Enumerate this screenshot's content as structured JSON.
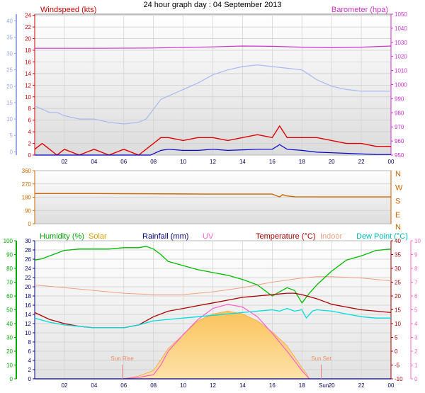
{
  "header": {
    "title": "24 hour graph day : 04 September 2013"
  },
  "chart_data": [
    {
      "type": "line",
      "labels": {
        "wind": "Windspeed (kts)",
        "baro": "Barometer (hpa)"
      },
      "x_ticks": [
        "02",
        "04",
        "06",
        "08",
        "10",
        "12",
        "14",
        "16",
        "18",
        "20",
        "22",
        "00"
      ],
      "xlim": [
        0,
        24
      ],
      "axes": {
        "outer_left": {
          "ticks": [
            0,
            5,
            10,
            15,
            20,
            25,
            30,
            35,
            40
          ],
          "ylim": [
            -1,
            42
          ]
        },
        "wind": {
          "ticks": [
            0,
            2,
            4,
            6,
            8,
            10,
            12,
            14,
            16,
            18,
            20,
            22,
            24
          ],
          "ylim": [
            0,
            24.2
          ]
        },
        "baro": {
          "ticks": [
            950,
            960,
            970,
            980,
            990,
            1000,
            1010,
            1020,
            1030,
            1040,
            1050
          ],
          "ylim": [
            950,
            1050
          ]
        }
      },
      "series": [
        {
          "key": "barometer",
          "axis": "baro",
          "color": "#cc33cc",
          "x": [
            0,
            4,
            8,
            12,
            14,
            16,
            18,
            20,
            22,
            24
          ],
          "values": [
            1025.8,
            1025.8,
            1026,
            1026.8,
            1027.4,
            1027.2,
            1026.6,
            1026.2,
            1026.6,
            1027.4
          ]
        },
        {
          "key": "wind_direction_trace",
          "axis": "outer_left",
          "color": "#a8b8f0",
          "x": [
            0,
            0.5,
            1,
            1.5,
            2,
            3,
            4,
            5,
            6,
            7,
            7.5,
            8,
            8.5,
            9,
            10,
            11,
            12,
            13,
            14,
            15,
            16,
            17,
            18,
            18.5,
            19,
            20,
            21,
            22,
            23,
            24
          ],
          "values": [
            14,
            13,
            12,
            12,
            11,
            10,
            10,
            9,
            8.5,
            9,
            10,
            13,
            16,
            17,
            19,
            21,
            23.5,
            25,
            26,
            26.5,
            26,
            25.5,
            25,
            23.5,
            22,
            20,
            19,
            18.5,
            18.5,
            18.5
          ]
        },
        {
          "key": "wind_gust",
          "axis": "wind",
          "color": "#e00000",
          "x": [
            0,
            0.5,
            1,
            1.5,
            2,
            3,
            4,
            5,
            6,
            7,
            7.5,
            8,
            8.5,
            9,
            10,
            11,
            12,
            13,
            14,
            15,
            16,
            16.5,
            17,
            18,
            19,
            20,
            21,
            22,
            23,
            24
          ],
          "values": [
            1,
            2,
            1,
            0,
            1,
            0,
            1,
            0,
            1,
            0,
            1,
            2,
            3,
            3,
            2.5,
            3,
            3,
            2.5,
            3,
            3.5,
            3,
            5,
            3,
            3,
            3,
            2.5,
            2,
            2,
            1.5,
            1.5
          ]
        },
        {
          "key": "wind_average",
          "axis": "wind",
          "color": "#0000cc",
          "x": [
            0,
            2,
            4,
            6,
            7.8,
            8.5,
            9,
            10,
            11,
            12,
            13,
            14,
            15,
            16,
            16.5,
            17,
            18,
            19,
            20,
            21,
            22,
            23,
            24
          ],
          "values": [
            0,
            0,
            0,
            0,
            0,
            0.8,
            1,
            0.8,
            0.8,
            1,
            0.8,
            0.9,
            1,
            1,
            1.8,
            1,
            0.8,
            0.5,
            0.4,
            0.3,
            0.2,
            0.1,
            0.1
          ]
        }
      ]
    },
    {
      "type": "line",
      "labels": {
        "compass": [
          "N",
          "W",
          "S",
          "E",
          "N"
        ]
      },
      "x_ticks": [],
      "xlim": [
        0,
        24
      ],
      "axes": {
        "dir": {
          "ticks": [
            0,
            90,
            180,
            270,
            360
          ],
          "ylim": [
            0,
            360
          ]
        }
      },
      "series": [
        {
          "key": "wind_direction",
          "axis": "dir",
          "color": "#cc6600",
          "x": [
            0,
            4,
            8,
            12,
            16,
            16.5,
            16.7,
            16.9,
            17.5,
            20,
            24
          ],
          "values": [
            205,
            205,
            203,
            201,
            201,
            182,
            198,
            190,
            183,
            182,
            182
          ]
        }
      ]
    },
    {
      "type": "line",
      "labels": {
        "humidity": "Humidity (%)",
        "solar": "Solar",
        "rainfall": "Rainfall (mm)",
        "uv": "UV",
        "temperature": "Temperature (°C)",
        "indoor": "Indoor",
        "dewpoint": "Dew Point (°C)",
        "sunrise": "Sun Rise",
        "sunset": "Sun Set",
        "sun_tick": "Sun"
      },
      "x_ticks": [
        "02",
        "04",
        "06",
        "08",
        "10",
        "12",
        "14",
        "16",
        "18",
        "20",
        "22",
        "00"
      ],
      "xlim": [
        0,
        24
      ],
      "markers": {
        "sunrise_x": 5.9,
        "sunset_x": 19.3,
        "sun_tick_x": 20.1
      },
      "axes": {
        "humidity": {
          "ticks": [
            0,
            10,
            20,
            30,
            40,
            50,
            60,
            70,
            80,
            90,
            100
          ],
          "ylim": [
            0,
            100
          ]
        },
        "rainfall": {
          "ticks": [
            0,
            2,
            4,
            6,
            8,
            10,
            12,
            14,
            16,
            18,
            20,
            22,
            24,
            26,
            28,
            30
          ],
          "ylim": [
            0,
            30
          ]
        },
        "temp": {
          "ticks": [
            -10,
            -5,
            0,
            5,
            10,
            15,
            20,
            25,
            30,
            35,
            40
          ],
          "ylim": [
            -10,
            40
          ]
        },
        "uv": {
          "ticks": [
            0,
            1,
            2,
            3,
            4,
            5,
            6,
            7,
            8,
            9,
            10
          ],
          "ylim": [
            0,
            10
          ]
        }
      },
      "series": [
        {
          "key": "solar",
          "axis": "temp",
          "color": "#f5b84a",
          "fill": "#fcd48a",
          "x": [
            5.9,
            7,
            8,
            9,
            10,
            11,
            12,
            13,
            14,
            15,
            16,
            17,
            18,
            18.3,
            18.5
          ],
          "values": [
            -10,
            -9,
            -7,
            1,
            6,
            11,
            13.5,
            14.5,
            13.5,
            11,
            7,
            2,
            -6,
            -8,
            -10
          ]
        },
        {
          "key": "uv",
          "axis": "uv",
          "color": "#ff66cc",
          "x": [
            5.9,
            7,
            8,
            8.5,
            9,
            10,
            11,
            12,
            13,
            14,
            15,
            16,
            17,
            18,
            18.5
          ],
          "values": [
            0,
            0.1,
            0.3,
            1,
            2,
            3.2,
            4.3,
            5.1,
            5.4,
            5.2,
            4.5,
            3.3,
            2,
            0.6,
            0
          ]
        },
        {
          "key": "indoor",
          "axis": "temp",
          "color": "#f0a080",
          "x": [
            0,
            2,
            4,
            6,
            8,
            10,
            12,
            14,
            16,
            18,
            19,
            20,
            22,
            24
          ],
          "values": [
            24,
            23,
            22,
            21,
            20.5,
            20.5,
            21.5,
            23,
            25,
            26.5,
            27,
            27,
            26.5,
            25.5
          ]
        },
        {
          "key": "humidity",
          "axis": "humidity",
          "color": "#00bb00",
          "x": [
            0,
            0.5,
            1,
            1.5,
            2,
            3,
            4,
            5,
            6,
            7,
            7.5,
            8,
            8.5,
            9,
            10,
            11,
            12,
            13,
            14,
            15,
            16,
            16.5,
            17,
            17.5,
            18,
            18.5,
            19,
            20,
            21,
            22,
            23,
            24
          ],
          "values": [
            86,
            87,
            89,
            91,
            93,
            94,
            94,
            94,
            95,
            95,
            96,
            94,
            90,
            85,
            82,
            79,
            77,
            75,
            72,
            68,
            60,
            63,
            66,
            64,
            55,
            62,
            68,
            78,
            86,
            89,
            93,
            94
          ]
        },
        {
          "key": "temperature",
          "axis": "temp",
          "color": "#aa0000",
          "x": [
            0,
            1,
            2,
            3,
            4,
            5,
            6,
            7,
            8,
            9,
            10,
            11,
            12,
            13,
            14,
            15,
            16,
            17,
            17.5,
            18,
            19,
            20,
            21,
            22,
            23,
            24
          ],
          "values": [
            14,
            11.5,
            10,
            9,
            8.5,
            8.5,
            8.5,
            9.5,
            12.5,
            14.5,
            15.5,
            16.5,
            17.5,
            18.5,
            19.5,
            20,
            20.5,
            21,
            21,
            20.5,
            19,
            17,
            16,
            15,
            14.5,
            14
          ]
        },
        {
          "key": "dewpoint",
          "axis": "temp",
          "color": "#00dddd",
          "x": [
            0,
            1,
            2,
            3,
            4,
            5,
            6,
            7,
            8,
            9,
            10,
            11,
            12,
            13,
            14,
            15,
            16,
            16.5,
            17,
            17.5,
            18,
            18.3,
            18.7,
            19,
            20,
            21,
            22,
            23,
            24
          ],
          "values": [
            12,
            10.5,
            9.5,
            9,
            8.5,
            8.5,
            8.5,
            9.5,
            11,
            11.5,
            12,
            12.5,
            13,
            13.5,
            14,
            14.5,
            15,
            14.5,
            15.5,
            14.5,
            15,
            12,
            14.5,
            15,
            14.5,
            13.5,
            12.5,
            12,
            12
          ]
        },
        {
          "key": "rainfall",
          "axis": "rainfall",
          "color": "#000080",
          "x": [
            0,
            24
          ],
          "values": [
            0,
            0
          ]
        }
      ]
    }
  ]
}
